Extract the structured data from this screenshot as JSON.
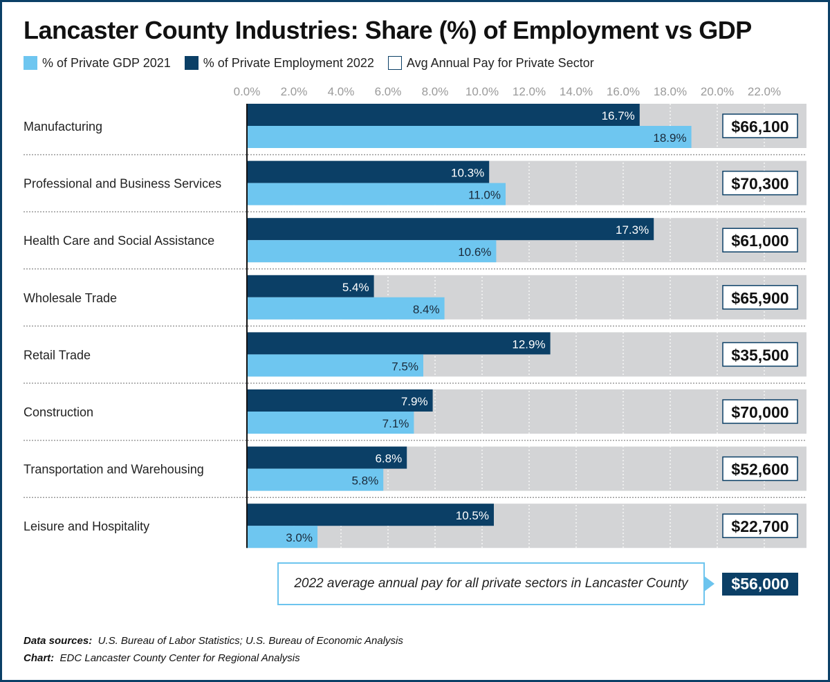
{
  "title": "Lancaster County Industries: Share (%) of Employment vs GDP",
  "legend": [
    {
      "label": "% of Private GDP 2021",
      "color": "#6ec6f0"
    },
    {
      "label": "% of Private Employment 2022",
      "color": "#0b3f66"
    },
    {
      "label": "Avg Annual Pay for Private Sector",
      "color": "#ffffff"
    }
  ],
  "chart_data": {
    "type": "bar",
    "orientation": "horizontal",
    "title": "Lancaster County Industries: Share (%) of Employment vs GDP",
    "xlim": [
      0,
      22
    ],
    "x_ticks": [
      0,
      2,
      4,
      6,
      8,
      10,
      12,
      14,
      16,
      18,
      20,
      22
    ],
    "x_tick_labels": [
      "0.0%",
      "2.0%",
      "4.0%",
      "6.0%",
      "8.0%",
      "10.0%",
      "12.0%",
      "14.0%",
      "16.0%",
      "18.0%",
      "20.0%",
      "22.0%"
    ],
    "grid": true,
    "legend_position": "top-left",
    "categories": [
      "Manufacturing",
      "Professional and Business Services",
      "Health Care and Social Assistance",
      "Wholesale Trade",
      "Retail Trade",
      "Construction",
      "Transportation and Warehousing",
      "Leisure and Hospitality"
    ],
    "series": [
      {
        "name": "% of Private Employment 2022",
        "color": "#0b3f66",
        "values": [
          16.7,
          10.3,
          17.3,
          5.4,
          12.9,
          7.9,
          6.8,
          10.5
        ],
        "labels": [
          "16.7%",
          "10.3%",
          "17.3%",
          "5.4%",
          "12.9%",
          "7.9%",
          "6.8%",
          "10.5%"
        ]
      },
      {
        "name": "% of Private GDP 2021",
        "color": "#6ec6f0",
        "values": [
          18.9,
          11.0,
          10.6,
          8.4,
          7.5,
          7.1,
          5.8,
          3.0
        ],
        "labels": [
          "18.9%",
          "11.0%",
          "10.6%",
          "8.4%",
          "7.5%",
          "7.1%",
          "5.8%",
          "3.0%"
        ]
      }
    ],
    "avg_annual_pay_label": "Avg Annual Pay for Private Sector",
    "avg_annual_pay": [
      "$66,100",
      "$70,300",
      "$61,000",
      "$65,900",
      "$35,500",
      "$70,000",
      "$52,600",
      "$22,700"
    ],
    "band_color": "#d3d4d6"
  },
  "callout": {
    "text": "2022 average annual pay for all private sectors in Lancaster County",
    "value": "$56,000"
  },
  "sources": {
    "data_label": "Data sources:",
    "data_text": "U.S. Bureau of Labor Statistics; U.S. Bureau of Economic Analysis",
    "chart_label": "Chart:",
    "chart_text": "EDC Lancaster County Center for Regional Analysis"
  }
}
